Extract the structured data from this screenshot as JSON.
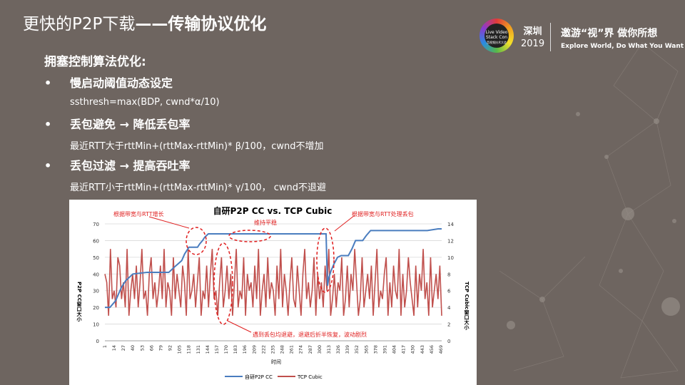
{
  "slide": {
    "title_regular": "更快的P2P下载",
    "title_bold": "——传输协议优化",
    "brand": {
      "logo_text_1": "Live Video",
      "logo_text_2": "Stack Con",
      "logo_text_3": "音视频技术大会",
      "city": "深圳",
      "year": "2019",
      "slogan_cn": "邀游“视”界 做你所想",
      "slogan_en": "Explore World, Do What You Want"
    },
    "section_heading": "拥塞控制算法优化:",
    "bullets": [
      {
        "marker": "•",
        "text": "慢启动阈值动态设定",
        "detail": "ssthresh=max(BDP, cwnd*α/10)"
      },
      {
        "marker": "•",
        "text": "丢包避免 → 降低丢包率",
        "detail": "最近RTT大于rttMin+(rttMax-rttMin)* β/100，cwnd不增加"
      },
      {
        "marker": "•",
        "text": "丢包过滤 → 提高吞吐率",
        "detail": "最近RTT小于rttMin+(rttMax-rttMin)* γ/100， cwnd不退避"
      }
    ],
    "colors": {
      "background": "#6e6560",
      "p2p_line": "#4a7dbf",
      "tcp_line": "#c0504d",
      "annotation": "#e02020"
    }
  },
  "chart_data": {
    "type": "line",
    "title": "自研P2P CC vs. TCP Cubic",
    "xlabel": "时间",
    "ylabel_left": "P2P CC窗口大小",
    "ylabel_right": "TCP Cubic窗口大小",
    "ylim_left": [
      0,
      70
    ],
    "ylim_right": [
      0,
      14
    ],
    "yticks_left": [
      "0",
      "10",
      "20",
      "30",
      "40",
      "50",
      "60",
      "70"
    ],
    "yticks_right": [
      "0",
      "2",
      "4",
      "6",
      "8",
      "10",
      "12",
      "14"
    ],
    "xticks": [
      "1",
      "14",
      "27",
      "40",
      "53",
      "66",
      "79",
      "92",
      "105",
      "118",
      "131",
      "144",
      "157",
      "170",
      "183",
      "196",
      "209",
      "222",
      "235",
      "248",
      "261",
      "274",
      "287",
      "300",
      "313",
      "326",
      "339",
      "352",
      "365",
      "378",
      "391",
      "404",
      "417",
      "430",
      "443",
      "456",
      "469"
    ],
    "legend_position": "bottom",
    "annotations": [
      "根据带宽与RTT增长",
      "维持平稳",
      "根据带宽与RTT处理丢包",
      "遇到丢包均退避，退避后折半恢复，波动剧烈"
    ],
    "series": [
      {
        "name": "自研P2P CC",
        "axis": "left",
        "x": [
          1,
          8,
          12,
          16,
          20,
          24,
          30,
          40,
          60,
          80,
          90,
          100,
          108,
          112,
          118,
          124,
          130,
          133,
          137,
          140,
          145,
          160,
          180,
          200,
          240,
          280,
          300,
          309,
          311,
          313,
          316,
          320,
          325,
          330,
          340,
          345,
          350,
          360,
          365,
          371,
          380,
          400,
          420,
          450,
          465,
          470
        ],
        "values": [
          20,
          20,
          22,
          24,
          28,
          32,
          36,
          40,
          41,
          41,
          41,
          45,
          48,
          52,
          56,
          56,
          56,
          58,
          60,
          62,
          64,
          64,
          64,
          64,
          64,
          64,
          64,
          64,
          33,
          38,
          42,
          46,
          50,
          51,
          51,
          55,
          60,
          60,
          63,
          66,
          66,
          66,
          66,
          66,
          67,
          67
        ]
      },
      {
        "name": "TCP Cubic",
        "axis": "right",
        "values": [
          8,
          7,
          3,
          11,
          5,
          6,
          4,
          10,
          9,
          5,
          7,
          4,
          11,
          3,
          6,
          8,
          5,
          9,
          4,
          7,
          11,
          5,
          6,
          3,
          8,
          10,
          5,
          7,
          4,
          6,
          9,
          5,
          11,
          4,
          7,
          6,
          3,
          10,
          5,
          8,
          6,
          4,
          9,
          7,
          3,
          11,
          5,
          6,
          8,
          4,
          7,
          10,
          3,
          6,
          5,
          9,
          4,
          8,
          11,
          5,
          6,
          3,
          7,
          10,
          4,
          6,
          9,
          5,
          8,
          3,
          7,
          11,
          4,
          6,
          5,
          10,
          3,
          8,
          6,
          7,
          4,
          9,
          5,
          11,
          3,
          6,
          8,
          4,
          10,
          5,
          7,
          6,
          3,
          9,
          5,
          11,
          4,
          8,
          6,
          3,
          7,
          10,
          5,
          4,
          9,
          6,
          3,
          8,
          11,
          5,
          7,
          4,
          6,
          10,
          3,
          8,
          5,
          7,
          4,
          9,
          6,
          11,
          3,
          5,
          8,
          4,
          7,
          6,
          10,
          3,
          5,
          9,
          4,
          8,
          6,
          11,
          7,
          3,
          5,
          10,
          4,
          6,
          8,
          5,
          9,
          3,
          7,
          11,
          4,
          6,
          5,
          8,
          10,
          3,
          7,
          4,
          9,
          6,
          5,
          11,
          3,
          8,
          4,
          6,
          10,
          7,
          5,
          3,
          9,
          4,
          8,
          6,
          11,
          5,
          7,
          3,
          10,
          4,
          6,
          8,
          5,
          9,
          3
        ]
      }
    ]
  }
}
